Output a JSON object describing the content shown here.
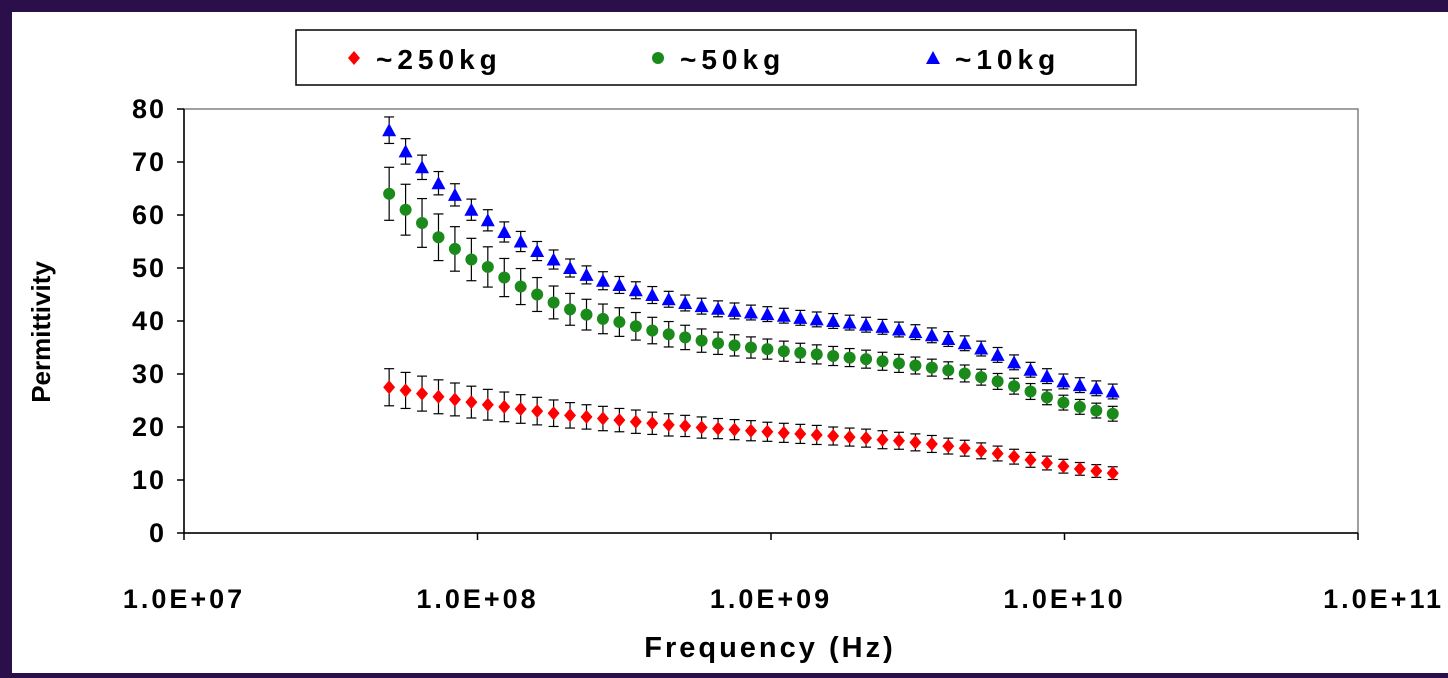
{
  "chart_data": {
    "type": "scatter",
    "xlabel": "Frequency (Hz)",
    "ylabel": "Permittivity",
    "x_scale": "log",
    "xlim": [
      10000000,
      100000000000
    ],
    "ylim": [
      0,
      80
    ],
    "x_ticks": [
      10000000,
      100000000,
      1000000000,
      10000000000,
      100000000000
    ],
    "x_tick_labels": [
      "1.0E+07",
      "1.0E+08",
      "1.0E+09",
      "1.0E+10",
      "1.0E+11"
    ],
    "y_ticks": [
      0,
      10,
      20,
      30,
      40,
      50,
      60,
      70,
      80
    ],
    "y_tick_labels": [
      "0",
      "10",
      "20",
      "30",
      "40",
      "50",
      "60",
      "70",
      "80"
    ],
    "grid": false,
    "legend_position": "top",
    "error_bars": true,
    "x": [
      50000000,
      56885000,
      64718000,
      73630000,
      83770000,
      95306000,
      108430000,
      123370000,
      140350000,
      159680000,
      181670000,
      206690000,
      235150000,
      267540000,
      304380000,
      346290000,
      393980000,
      448240000,
      509970000,
      580190000,
      660090000,
      750990000,
      854410000,
      972070000,
      1105900000,
      1258300000,
      1431500000,
      1628700000,
      1852900000,
      2108100000,
      2398400000,
      2728700000,
      3104500000,
      3532000000,
      4018400000,
      4571800000,
      5201400000,
      5917700000,
      6732600000,
      7659800000,
      8714600000,
      9914700000,
      11280000000,
      12833000000,
      14600000000
    ],
    "series": [
      {
        "name": "~250kg",
        "color": "#ff0000",
        "marker": "diamond",
        "y": [
          27.5,
          26.9,
          26.3,
          25.7,
          25.2,
          24.7,
          24.2,
          23.8,
          23.4,
          23.0,
          22.6,
          22.2,
          21.9,
          21.6,
          21.3,
          21.0,
          20.7,
          20.4,
          20.2,
          19.9,
          19.7,
          19.5,
          19.3,
          19.1,
          18.9,
          18.7,
          18.5,
          18.3,
          18.1,
          17.9,
          17.6,
          17.4,
          17.1,
          16.8,
          16.4,
          16.0,
          15.5,
          15.0,
          14.4,
          13.8,
          13.2,
          12.6,
          12.1,
          11.7,
          11.3
        ],
        "error": [
          3.5,
          3.4,
          3.3,
          3.2,
          3.1,
          3.0,
          2.9,
          2.8,
          2.7,
          2.6,
          2.5,
          2.4,
          2.3,
          2.3,
          2.2,
          2.2,
          2.1,
          2.1,
          2.0,
          2.0,
          1.9,
          1.9,
          1.9,
          1.8,
          1.8,
          1.8,
          1.8,
          1.7,
          1.7,
          1.7,
          1.7,
          1.6,
          1.6,
          1.6,
          1.5,
          1.5,
          1.5,
          1.4,
          1.4,
          1.4,
          1.3,
          1.3,
          1.2,
          1.2,
          1.2
        ]
      },
      {
        "name": "~50kg",
        "color": "#1a8a1a",
        "marker": "circle",
        "y": [
          64.0,
          61.0,
          58.5,
          55.8,
          53.6,
          51.6,
          50.2,
          48.2,
          46.5,
          45.0,
          43.5,
          42.2,
          41.2,
          40.4,
          39.8,
          39.0,
          38.2,
          37.5,
          36.9,
          36.3,
          35.8,
          35.4,
          35.0,
          34.7,
          34.3,
          34.0,
          33.7,
          33.4,
          33.1,
          32.8,
          32.4,
          32.0,
          31.6,
          31.2,
          30.7,
          30.1,
          29.4,
          28.6,
          27.7,
          26.7,
          25.6,
          24.6,
          23.8,
          23.1,
          22.5
        ],
        "error": [
          5.0,
          4.8,
          4.6,
          4.4,
          4.2,
          4.0,
          3.8,
          3.6,
          3.4,
          3.2,
          3.1,
          3.0,
          2.9,
          2.8,
          2.7,
          2.6,
          2.5,
          2.4,
          2.3,
          2.2,
          2.1,
          2.0,
          2.0,
          1.9,
          1.9,
          1.8,
          1.8,
          1.8,
          1.7,
          1.7,
          1.7,
          1.7,
          1.6,
          1.6,
          1.6,
          1.6,
          1.5,
          1.5,
          1.5,
          1.5,
          1.4,
          1.4,
          1.4,
          1.4,
          1.4
        ]
      },
      {
        "name": "~10kg",
        "color": "#0000ff",
        "marker": "triangle",
        "y": [
          76.0,
          72.0,
          69.0,
          66.0,
          63.8,
          61.0,
          59.0,
          56.8,
          55.0,
          53.2,
          51.6,
          50.0,
          48.7,
          47.6,
          46.8,
          45.8,
          44.9,
          44.1,
          43.4,
          42.8,
          42.3,
          41.9,
          41.6,
          41.3,
          41.0,
          40.6,
          40.3,
          40.0,
          39.7,
          39.3,
          38.9,
          38.4,
          37.9,
          37.3,
          36.6,
          35.8,
          34.8,
          33.6,
          32.2,
          30.8,
          29.6,
          28.6,
          27.9,
          27.3,
          26.7
        ],
        "error": [
          2.5,
          2.4,
          2.3,
          2.2,
          2.1,
          2.0,
          2.0,
          1.9,
          1.9,
          1.8,
          1.8,
          1.7,
          1.7,
          1.7,
          1.6,
          1.6,
          1.6,
          1.5,
          1.5,
          1.5,
          1.5,
          1.5,
          1.4,
          1.4,
          1.4,
          1.4,
          1.4,
          1.4,
          1.4,
          1.4,
          1.4,
          1.4,
          1.4,
          1.4,
          1.4,
          1.4,
          1.4,
          1.4,
          1.4,
          1.4,
          1.4,
          1.4,
          1.4,
          1.4,
          1.4
        ]
      }
    ]
  }
}
